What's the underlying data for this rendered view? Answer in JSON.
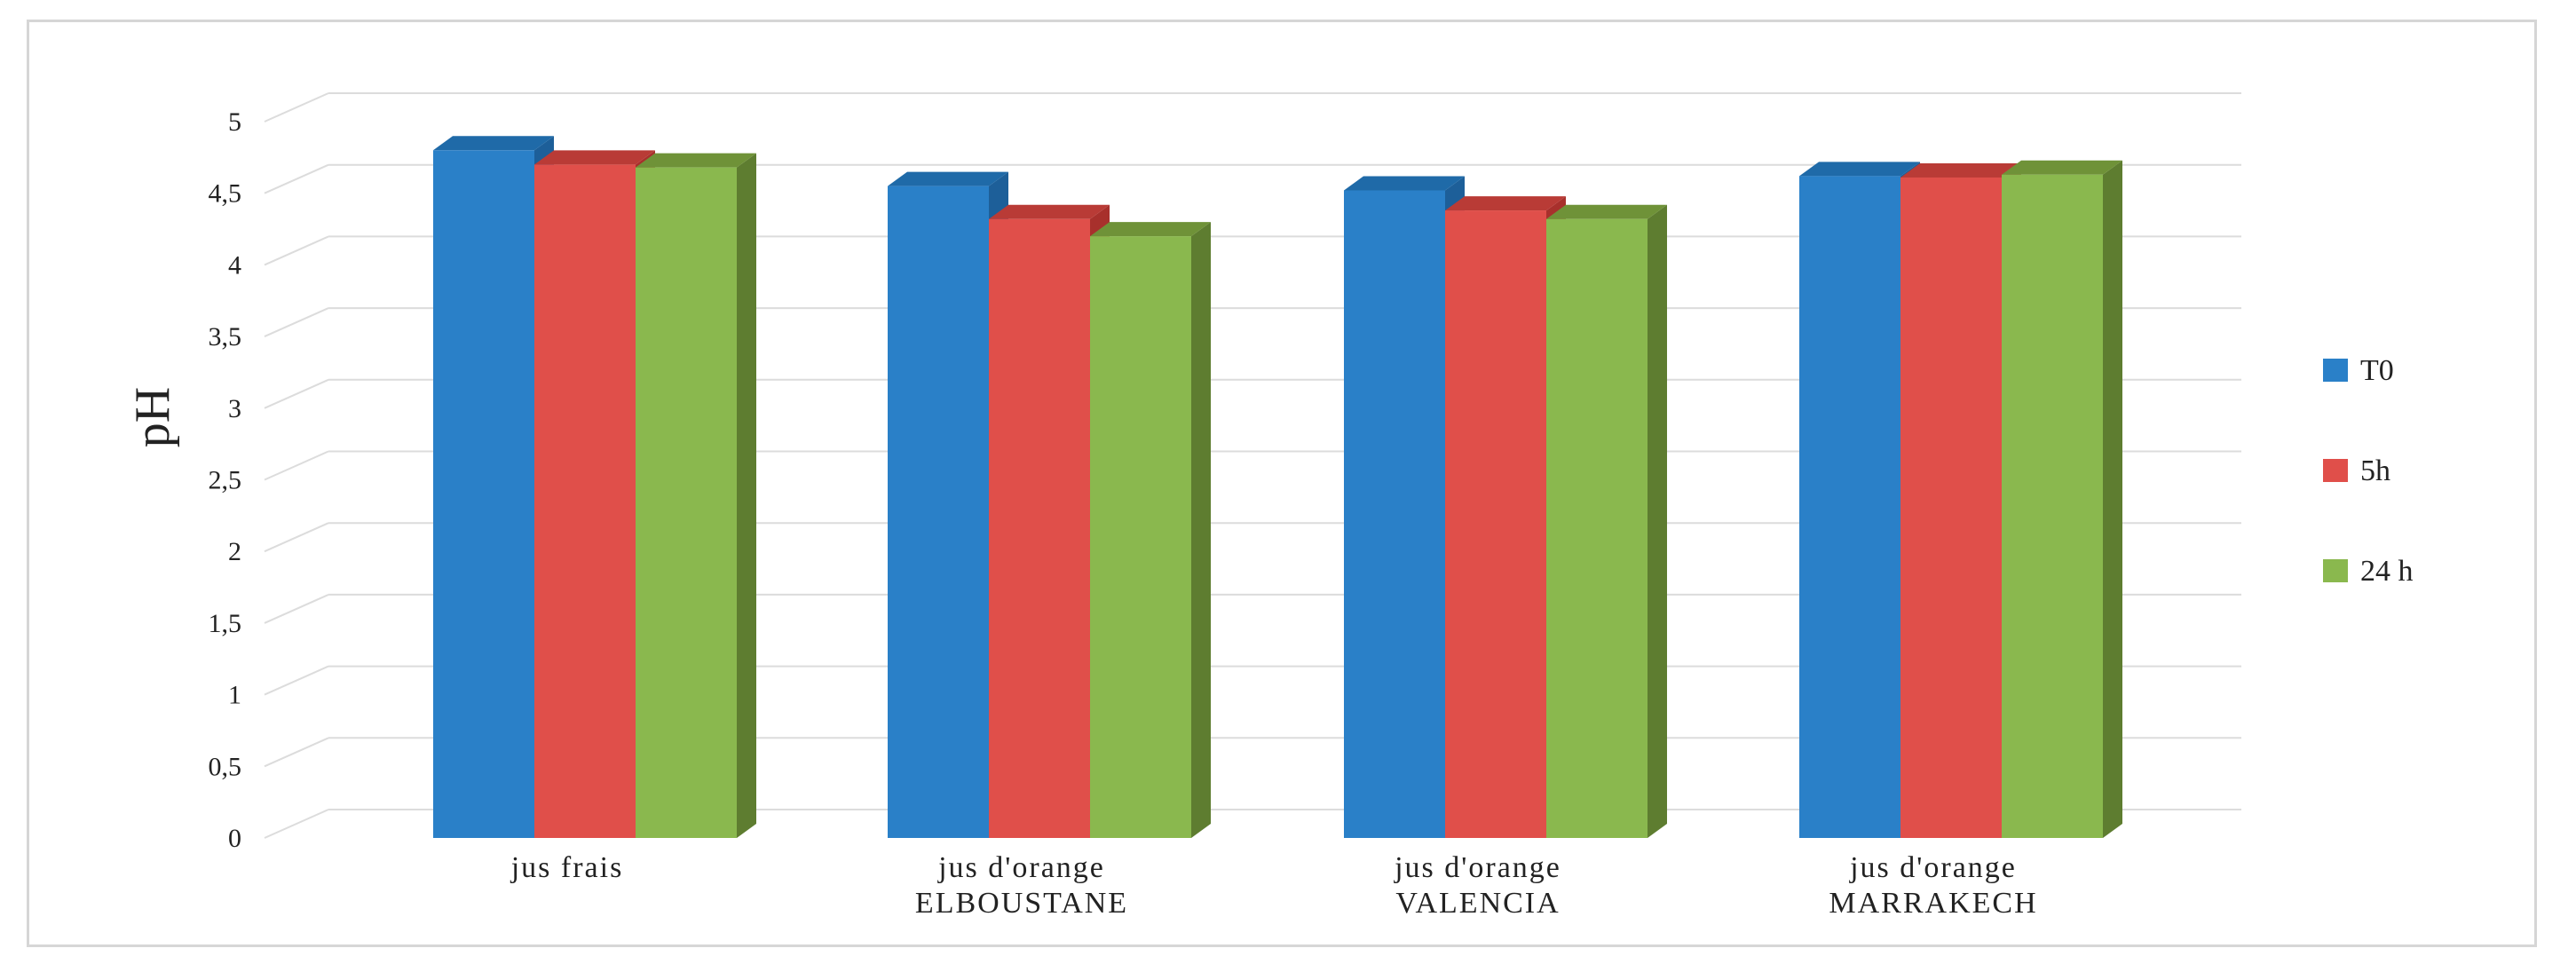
{
  "chart_data": {
    "type": "bar",
    "style": "3d-clustered-column",
    "ylabel": "pH",
    "xlabel": "",
    "ylim": [
      0,
      5
    ],
    "ytick_labels": [
      "0",
      "0,5",
      "1",
      "1,5",
      "2",
      "2,5",
      "3",
      "3,5",
      "4",
      "4,5",
      "5"
    ],
    "yticks": [
      0,
      0.5,
      1,
      1.5,
      2,
      2.5,
      3,
      3.5,
      4,
      4.5,
      5
    ],
    "grid": true,
    "legend_position": "right",
    "categories": [
      [
        "jus  frais"
      ],
      [
        "jus  d'orange",
        "ELBOUSTANE"
      ],
      [
        "jus  d'orange",
        "VALENCIA"
      ],
      [
        "jus  d'orange",
        "MARRAKECH"
      ]
    ],
    "series": [
      {
        "name": "T0",
        "color": "#2a80c8",
        "side": "#1d5f99",
        "top": "#1f6aa8",
        "values": [
          4.8,
          4.55,
          4.52,
          4.62
        ]
      },
      {
        "name": "5h",
        "color": "#e04f4a",
        "side": "#a8302c",
        "top": "#b93b36",
        "values": [
          4.7,
          4.32,
          4.38,
          4.61
        ]
      },
      {
        "name": "24 h",
        "color": "#8ab84e",
        "side": "#5e7d30",
        "top": "#6f9238",
        "values": [
          4.68,
          4.2,
          4.32,
          4.63
        ]
      }
    ]
  }
}
